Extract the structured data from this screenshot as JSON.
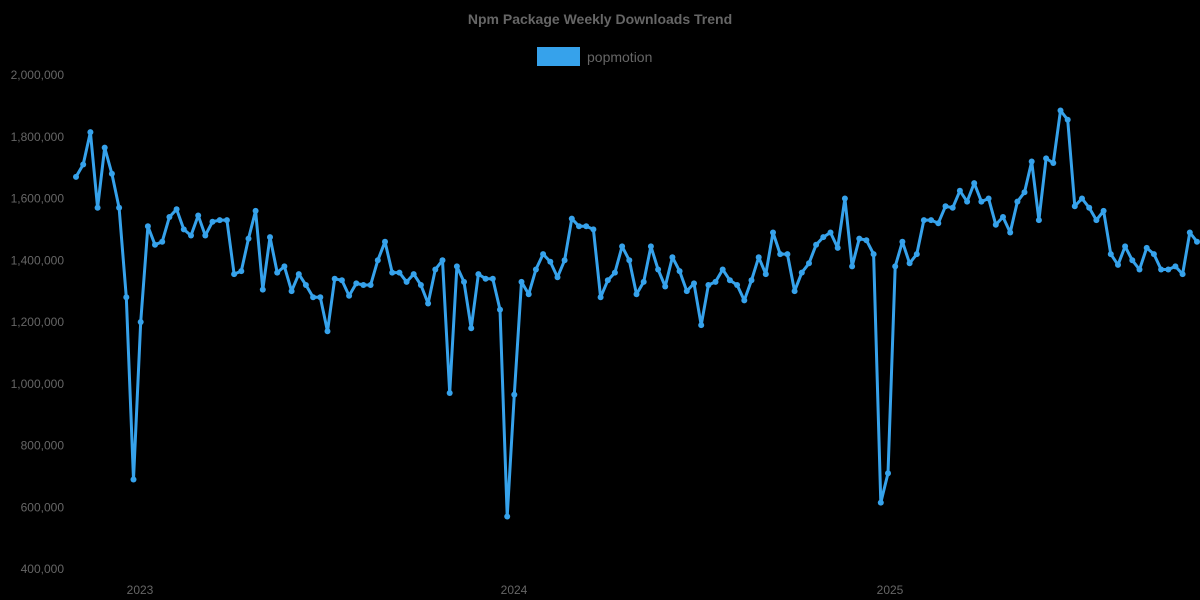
{
  "chart_data": {
    "type": "line",
    "title": "Npm Package Weekly Downloads Trend",
    "xlabel": "",
    "ylabel": "",
    "ylim": [
      400000,
      2000000
    ],
    "grid": false,
    "legend_position": "top",
    "y_ticks": [
      "2,000,000",
      "1,800,000",
      "1,600,000",
      "1,400,000",
      "1,200,000",
      "1,000,000",
      "800,000",
      "600,000",
      "400,000"
    ],
    "x_ticks": [
      "2023",
      "2024",
      "2025"
    ],
    "series": [
      {
        "name": "popmotion",
        "color": "#36a2eb",
        "values": [
          1670000,
          1710000,
          1815000,
          1570000,
          1765000,
          1680000,
          1570000,
          1280000,
          690000,
          1200000,
          1510000,
          1450000,
          1460000,
          1540000,
          1565000,
          1500000,
          1480000,
          1545000,
          1480000,
          1525000,
          1530000,
          1530000,
          1355000,
          1365000,
          1470000,
          1560000,
          1305000,
          1475000,
          1360000,
          1380000,
          1300000,
          1355000,
          1320000,
          1280000,
          1280000,
          1170000,
          1340000,
          1335000,
          1285000,
          1325000,
          1320000,
          1320000,
          1400000,
          1460000,
          1360000,
          1360000,
          1330000,
          1355000,
          1320000,
          1260000,
          1370000,
          1400000,
          970000,
          1380000,
          1330000,
          1180000,
          1355000,
          1340000,
          1340000,
          1240000,
          570000,
          965000,
          1330000,
          1290000,
          1370000,
          1420000,
          1395000,
          1345000,
          1400000,
          1535000,
          1510000,
          1510000,
          1500000,
          1280000,
          1335000,
          1360000,
          1445000,
          1400000,
          1290000,
          1330000,
          1445000,
          1370000,
          1315000,
          1410000,
          1365000,
          1300000,
          1325000,
          1190000,
          1320000,
          1330000,
          1370000,
          1335000,
          1320000,
          1270000,
          1335000,
          1410000,
          1355000,
          1490000,
          1420000,
          1420000,
          1300000,
          1360000,
          1390000,
          1450000,
          1475000,
          1490000,
          1440000,
          1600000,
          1380000,
          1470000,
          1465000,
          1420000,
          615000,
          710000,
          1380000,
          1460000,
          1390000,
          1420000,
          1530000,
          1530000,
          1520000,
          1575000,
          1570000,
          1625000,
          1590000,
          1650000,
          1590000,
          1600000,
          1515000,
          1540000,
          1490000,
          1590000,
          1620000,
          1720000,
          1530000,
          1730000,
          1715000,
          1885000,
          1855000,
          1575000,
          1600000,
          1570000,
          1530000,
          1560000,
          1420000,
          1385000,
          1445000,
          1400000,
          1370000,
          1440000,
          1420000,
          1370000,
          1370000,
          1380000,
          1355000,
          1490000,
          1460000
        ]
      }
    ]
  },
  "legend": {
    "label": "popmotion",
    "swatch_color": "#36a2eb"
  }
}
